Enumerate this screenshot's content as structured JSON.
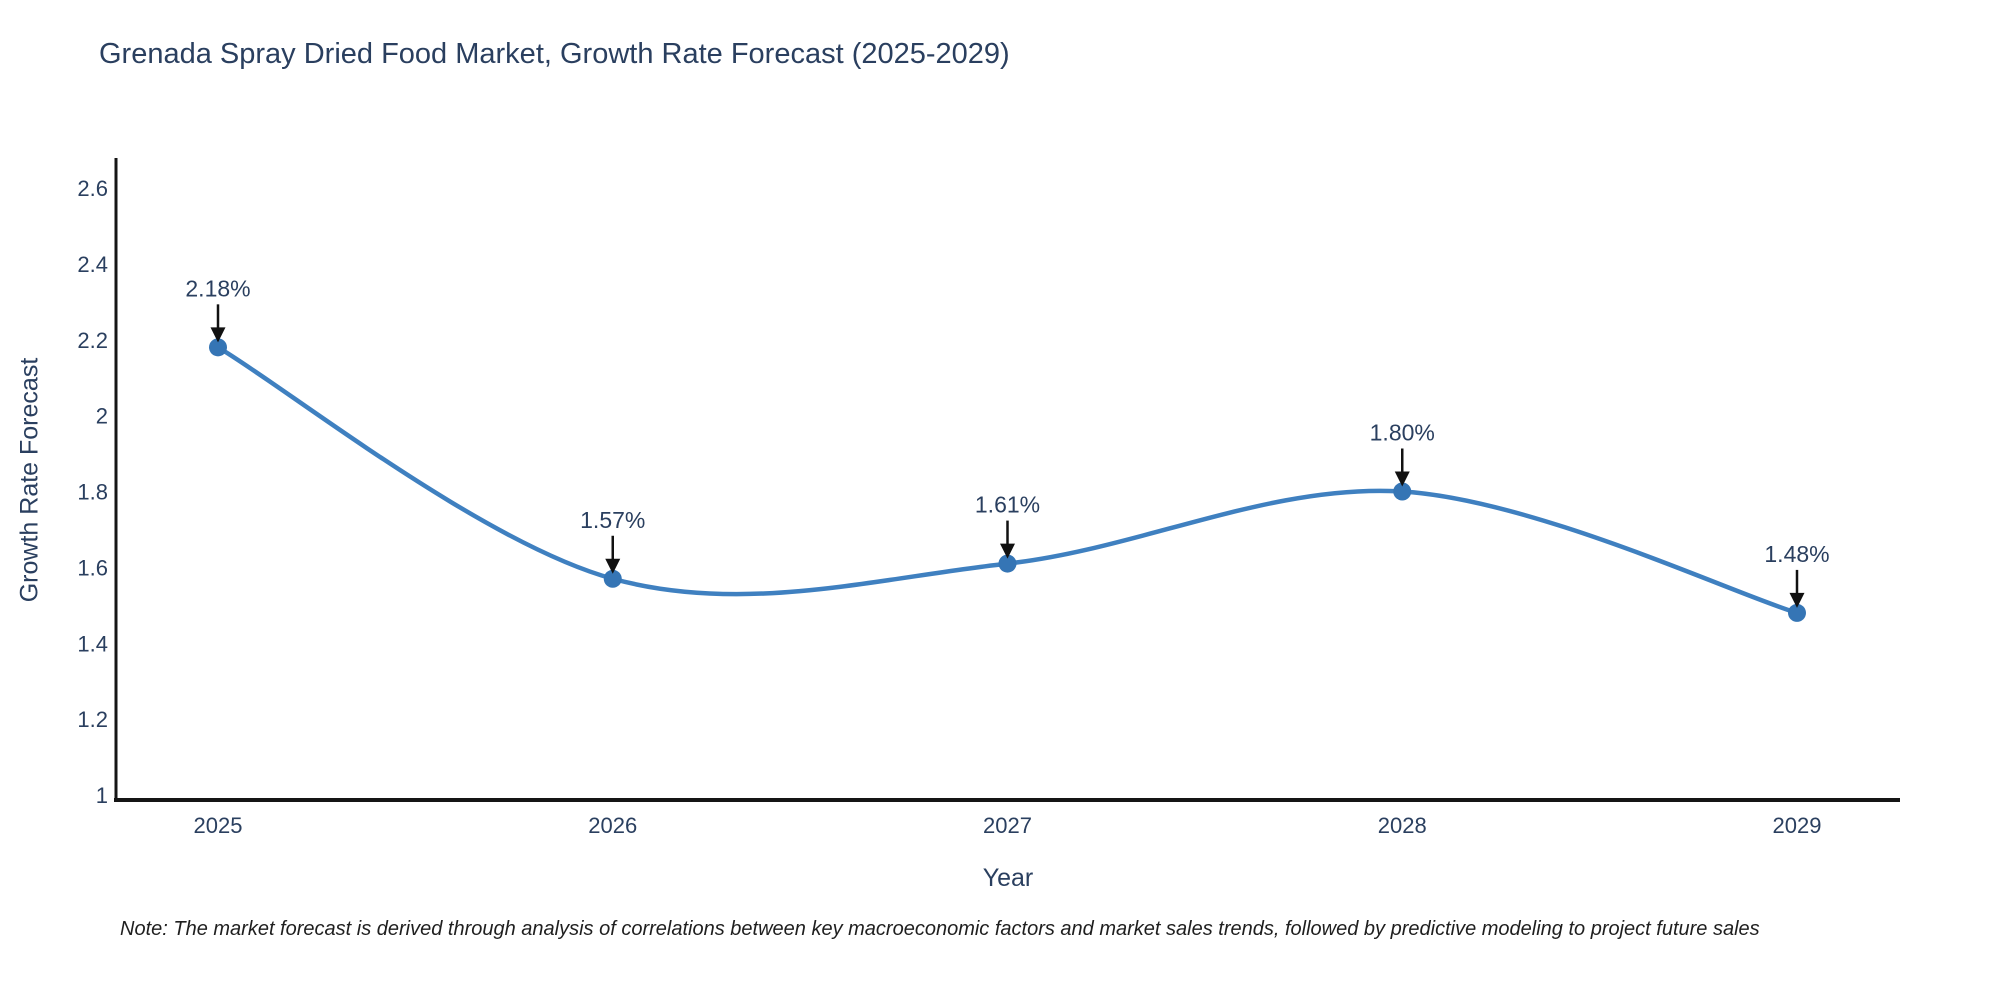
{
  "footnote": "Note: The market forecast is derived through analysis of correlations between key macroeconomic factors and market sales trends, followed by predictive modeling to project future sales",
  "chart_data": {
    "type": "line",
    "line_shape": "spline",
    "title": "Grenada Spray Dried Food Market, Growth Rate Forecast (2025-2029)",
    "xlabel": "Year",
    "ylabel": "Growth Rate Forecast",
    "x": [
      2025,
      2026,
      2027,
      2028,
      2029
    ],
    "xtick_labels": [
      "2025",
      "2026",
      "2027",
      "2028",
      "2029"
    ],
    "series": [
      {
        "name": "Growth Rate Forecast",
        "values": [
          2.18,
          1.57,
          1.61,
          1.8,
          1.48
        ],
        "point_labels": [
          "2.18%",
          "1.57%",
          "1.61%",
          "1.80%",
          "1.48%"
        ]
      }
    ],
    "ylim": [
      1,
      2.6
    ],
    "yticks": [
      1,
      1.2,
      1.4,
      1.6,
      1.8,
      2,
      2.2,
      2.4,
      2.6
    ],
    "ytick_labels": [
      "1",
      "1.2",
      "1.4",
      "1.6",
      "1.8",
      "2",
      "2.2",
      "2.4",
      "2.6"
    ],
    "grid": false,
    "legend": "none",
    "markers": true,
    "annotation_arrows": true,
    "colors": {
      "line": "#3f80c0",
      "marker": "#3575b5",
      "axis": "#151515",
      "arrow": "#111111",
      "annotation_text": "#2a3f5f",
      "tick_text": "#2a3f5f",
      "title_text": "#2a3f5f",
      "note_text": "#1f1f1f",
      "background": "#ffffff"
    }
  }
}
